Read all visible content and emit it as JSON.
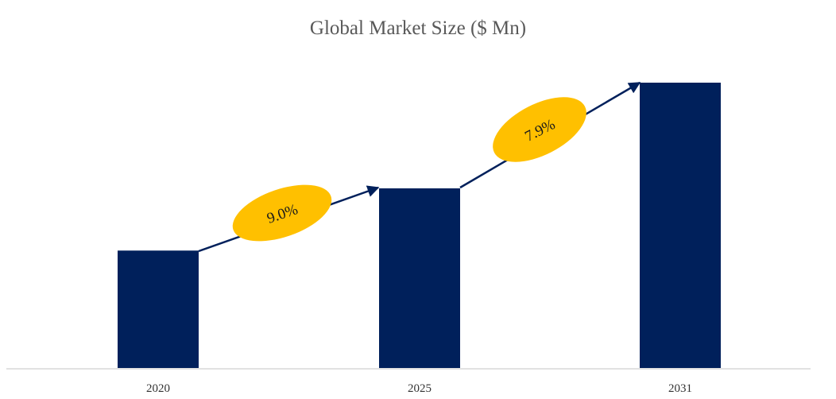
{
  "chart_data": {
    "type": "bar",
    "title": "Global Market Size ($ Mn)",
    "xlabel": "",
    "ylabel": "",
    "categories": [
      "2020",
      "2025",
      "2031"
    ],
    "values": [
      100,
      153,
      243
    ],
    "ylim": [
      0,
      250
    ],
    "grid": false,
    "legend": "none",
    "colors": {
      "bar": "#00205B",
      "arrow": "#00205B",
      "badge": "#FFC000",
      "axis": "#D9D9D9"
    },
    "annotations": [
      {
        "type": "growth-arrow",
        "from": "2020",
        "to": "2025",
        "label": "9.0%"
      },
      {
        "type": "growth-arrow",
        "from": "2025",
        "to": "2031",
        "label": "7.9%"
      }
    ]
  }
}
